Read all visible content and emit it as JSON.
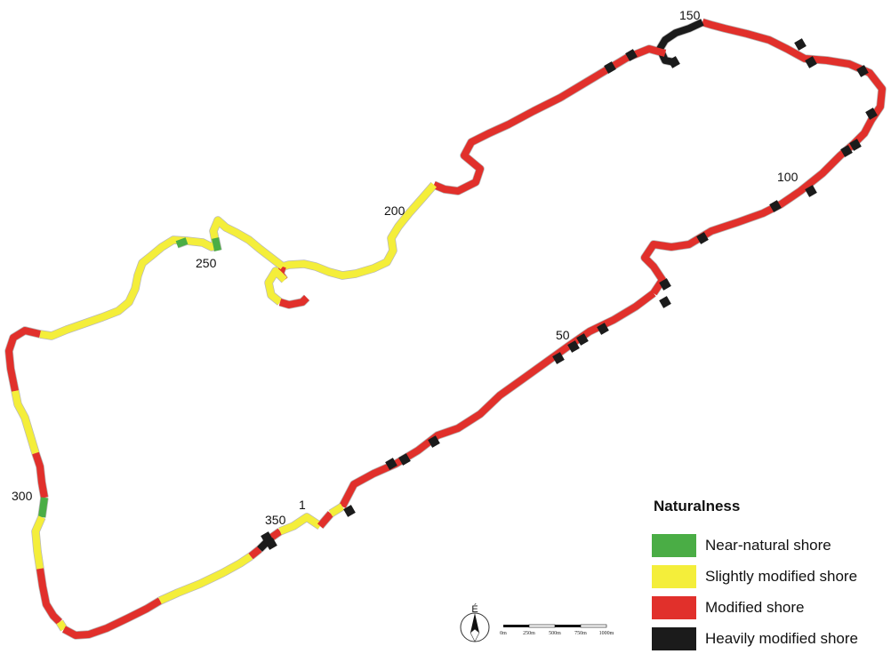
{
  "colors": {
    "near_natural": "#4aad45",
    "slightly_modified": "#f4ee3a",
    "modified": "#e1302b",
    "heavily_modified": "#1b1b1b"
  },
  "km_markers": [
    "1",
    "50",
    "100",
    "150",
    "200",
    "250",
    "300",
    "350"
  ],
  "legend": {
    "title": "Naturalness",
    "items": [
      {
        "label": "Near-natural shore",
        "class": "near_natural"
      },
      {
        "label": "Slightly modified shore",
        "class": "slightly_modified"
      },
      {
        "label": "Modified shore",
        "class": "modified"
      },
      {
        "label": "Heavily modified shore",
        "class": "heavily_modified"
      }
    ]
  },
  "north_arrow": {
    "letter": "É",
    "icon": "north-arrow-icon"
  },
  "scale_bar": {
    "labels": [
      "0m",
      "250m",
      "500m",
      "750m",
      "1000m"
    ]
  }
}
